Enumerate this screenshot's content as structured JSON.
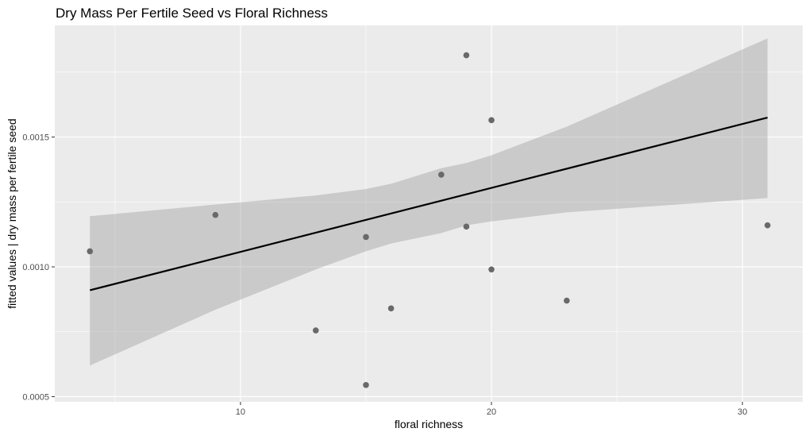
{
  "chart_data": {
    "type": "scatter",
    "title": "Dry Mass Per Fertile Seed vs Floral Richness",
    "xlabel": "floral richness",
    "ylabel": "fitted values | dry mass per fertile seed",
    "xlim": [
      2.6,
      32.4
    ],
    "ylim": [
      0.00048,
      0.00193
    ],
    "x_ticks": [
      10,
      20,
      30
    ],
    "x_tick_labels": [
      "10",
      "20",
      "30"
    ],
    "y_ticks": [
      0.0005,
      0.001,
      0.0015
    ],
    "y_tick_labels": [
      "0.0005",
      "0.0010",
      "0.0015"
    ],
    "grid": true,
    "series": [
      {
        "type": "scatter",
        "x": [
          4,
          9,
          13,
          15,
          15,
          16,
          18,
          19,
          19,
          20,
          20,
          23,
          31
        ],
        "y": [
          0.00106,
          0.0012,
          0.000755,
          0.000545,
          0.001115,
          0.00084,
          0.001355,
          0.001815,
          0.001155,
          0.00099,
          0.001565,
          0.00087,
          0.00116
        ]
      },
      {
        "type": "line",
        "x": [
          4,
          31
        ],
        "y": [
          0.00091,
          0.001575
        ]
      },
      {
        "type": "area",
        "x": [
          4,
          9,
          13,
          15,
          16,
          18,
          19,
          20,
          23,
          31
        ],
        "upper": [
          0.001195,
          0.00124,
          0.001275,
          0.0013,
          0.00132,
          0.00138,
          0.0014,
          0.00143,
          0.00154,
          0.00188
        ],
        "lower": [
          0.00062,
          0.000835,
          0.00099,
          0.00106,
          0.00109,
          0.00113,
          0.00116,
          0.001175,
          0.00121,
          0.001265
        ]
      }
    ],
    "colors": {
      "panel": "#ebebeb",
      "grid": "#ffffff",
      "point": "#696969",
      "line": "#000000",
      "band": "#999999"
    }
  }
}
